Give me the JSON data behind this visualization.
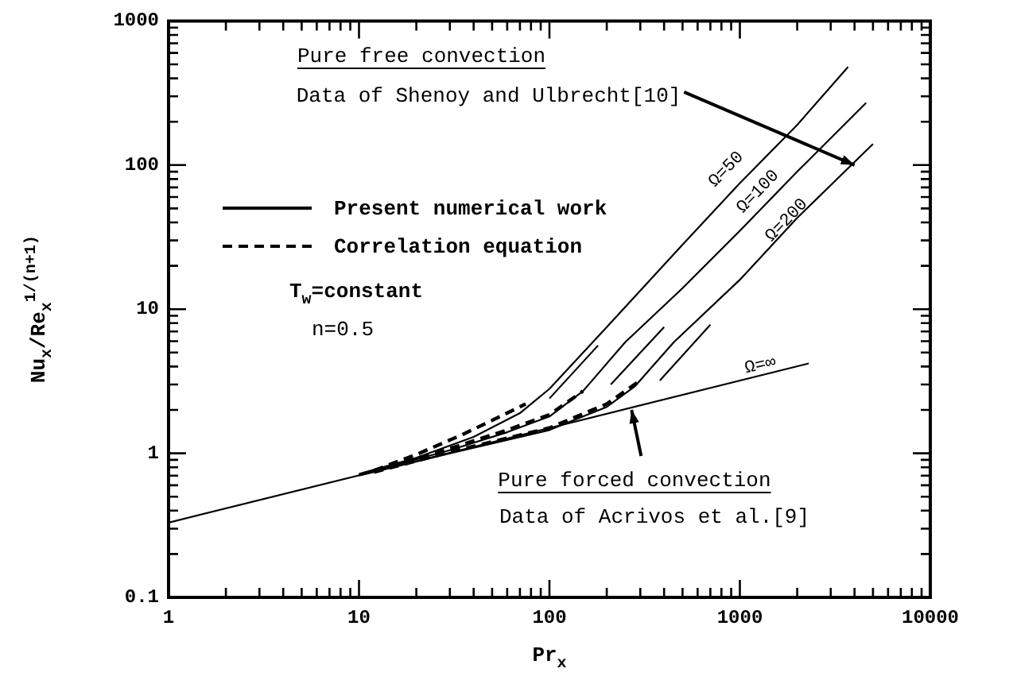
{
  "chart_data": {
    "type": "line",
    "xlabel": "Pr$_{x}$",
    "ylabel": "Nu$_{x}$/Re$_{x}$$^{1/(n+1)}$",
    "log": "xy",
    "grid": false,
    "line_style": "solid",
    "xlim": [
      1,
      10000
    ],
    "ylim": [
      0.1,
      1000
    ],
    "xticks": [
      1,
      {
        "value": 2,
        "label": null
      },
      {
        "value": 3,
        "label": null
      },
      {
        "value": 4,
        "label": null
      },
      {
        "value": 5,
        "label": null
      },
      {
        "value": 6,
        "label": null
      },
      {
        "value": 7,
        "label": null
      },
      {
        "value": 8,
        "label": null
      },
      {
        "value": 9,
        "label": null
      },
      10,
      {
        "value": 20,
        "label": null
      },
      {
        "value": 30,
        "label": null
      },
      {
        "value": 40,
        "label": null
      },
      {
        "value": 50,
        "label": null
      },
      {
        "value": 60,
        "label": null
      },
      {
        "value": 70,
        "label": null
      },
      {
        "value": 80,
        "label": null
      },
      {
        "value": 90,
        "label": null
      },
      100,
      {
        "value": 200,
        "label": null
      },
      {
        "value": 300,
        "label": null
      },
      {
        "value": 400,
        "label": null
      },
      {
        "value": 500,
        "label": null
      },
      {
        "value": 600,
        "label": null
      },
      {
        "value": 700,
        "label": null
      },
      {
        "value": 800,
        "label": null
      },
      {
        "value": 900,
        "label": null
      },
      1000,
      {
        "value": 2000,
        "label": null
      },
      {
        "value": 3000,
        "label": null
      },
      {
        "value": 4000,
        "label": null
      },
      {
        "value": 5000,
        "label": null
      },
      {
        "value": 6000,
        "label": null
      },
      {
        "value": 7000,
        "label": null
      },
      {
        "value": 8000,
        "label": null
      },
      {
        "value": 9000,
        "label": null
      },
      10000
    ],
    "yticks": [
      0.1,
      {
        "value": 0.2,
        "label": null
      },
      {
        "value": 0.3,
        "label": null
      },
      {
        "value": 0.4,
        "label": null
      },
      {
        "value": 0.5,
        "label": null
      },
      {
        "value": 0.6,
        "label": null
      },
      {
        "value": 0.7,
        "label": null
      },
      {
        "value": 0.8,
        "label": null
      },
      {
        "value": 0.9,
        "label": null
      },
      1,
      {
        "value": 2,
        "label": null
      },
      {
        "value": 3,
        "label": null
      },
      {
        "value": 4,
        "label": null
      },
      {
        "value": 5,
        "label": null
      },
      {
        "value": 6,
        "label": null
      },
      {
        "value": 7,
        "label": null
      },
      {
        "value": 8,
        "label": null
      },
      {
        "value": 9,
        "label": null
      },
      10,
      {
        "value": 20,
        "label": null
      },
      {
        "value": 30,
        "label": null
      },
      {
        "value": 40,
        "label": null
      },
      {
        "value": 50,
        "label": null
      },
      {
        "value": 60,
        "label": null
      },
      {
        "value": 70,
        "label": null
      },
      {
        "value": 80,
        "label": null
      },
      {
        "value": 90,
        "label": null
      },
      100,
      {
        "value": 200,
        "label": null
      },
      {
        "value": 300,
        "label": null
      },
      {
        "value": 400,
        "label": null
      },
      {
        "value": 500,
        "label": null
      },
      {
        "value": 600,
        "label": null
      },
      {
        "value": 700,
        "label": null
      },
      {
        "value": 800,
        "label": null
      },
      {
        "value": 900,
        "label": null
      },
      1000
    ],
    "series": [
      {
        "color": "#000000",
        "x": [
          1,
          2300
        ],
        "values": [
          0.33,
          4.2
        ]
      },
      {
        "color": "#000000",
        "x": [
          10,
          20,
          40,
          70,
          100,
          200,
          500,
          1000,
          2000,
          3700
        ],
        "values": [
          0.72,
          0.93,
          1.3,
          1.9,
          2.8,
          7.5,
          28,
          75,
          190,
          480
        ]
      },
      {
        "color": "#000000",
        "x": [
          10,
          30,
          60,
          100,
          150,
          250,
          500,
          1000,
          2000,
          4600
        ],
        "values": [
          0.71,
          1.05,
          1.4,
          1.8,
          2.7,
          5.9,
          14,
          35,
          90,
          270
        ]
      },
      {
        "color": "#000000",
        "x": [
          10,
          30,
          100,
          200,
          280,
          450,
          1000,
          2000,
          5000
        ],
        "values": [
          0.7,
          1.0,
          1.45,
          2.1,
          2.9,
          5.9,
          16,
          43,
          140
        ]
      },
      {
        "color": "#000000",
        "line_style": "dashed",
        "x": [
          12,
          20,
          35,
          55,
          75
        ],
        "values": [
          0.76,
          0.98,
          1.35,
          1.8,
          2.2
        ]
      },
      {
        "color": "#000000",
        "line_style": "dashed",
        "x": [
          12,
          30,
          60,
          100,
          150
        ],
        "values": [
          0.75,
          1.08,
          1.45,
          1.85,
          2.7
        ]
      },
      {
        "color": "#000000",
        "line_style": "dashed",
        "x": [
          12,
          30,
          100,
          200,
          300
        ],
        "values": [
          0.74,
          1.02,
          1.5,
          2.2,
          3.2
        ]
      },
      {
        "color": "#000000",
        "x": [
          100,
          180
        ],
        "values": [
          2.4,
          5.6
        ]
      },
      {
        "color": "#000000",
        "x": [
          210,
          400
        ],
        "values": [
          3.0,
          7.5
        ]
      },
      {
        "color": "#000000",
        "x": [
          380,
          700
        ],
        "values": [
          3.2,
          7.8
        ]
      }
    ],
    "annotations": [
      "Pure free convection",
      {
        "text": "Data of Shenoy and Ulbrecht[10]",
        "x": 4000,
        "y": 100
      },
      "Present numerical work",
      "Correlation equation",
      "T$_{w}$=constant",
      "n=0.5",
      "Ω=50",
      "Ω=100",
      "Ω=200",
      "Ω=∞",
      {
        "text": "Pure forced convection",
        "x": 270,
        "y": 2.0
      },
      "Data of Acrivos et al.[9]"
    ]
  }
}
